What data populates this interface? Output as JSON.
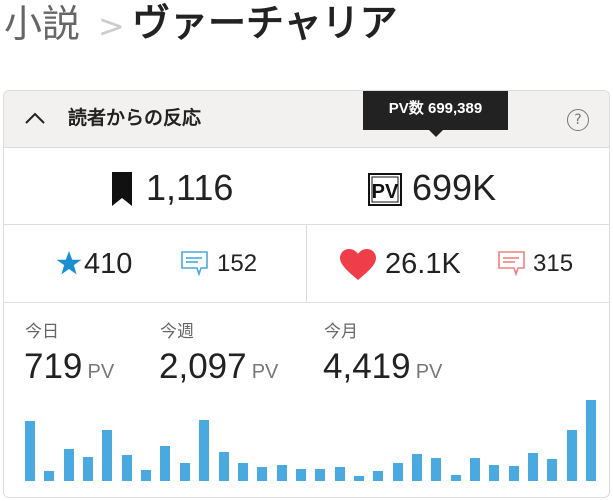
{
  "breadcrumb": {
    "category": "小説",
    "title": "ヴァーチャリア"
  },
  "panel": {
    "title": "読者からの反応",
    "tooltip": "PV数 699,389",
    "bookmarks": "1,116",
    "pv_total": "699K",
    "stars": "410",
    "reviews_blue": "152",
    "likes": "26.1K",
    "comments_red": "315",
    "stats": [
      {
        "label": "今日",
        "value": "719",
        "unit": "PV"
      },
      {
        "label": "今週",
        "value": "2,097",
        "unit": "PV"
      },
      {
        "label": "今月",
        "value": "4,419",
        "unit": "PV"
      }
    ]
  },
  "colors": {
    "bar": "#4aa9df",
    "star": "#1b8fd0",
    "heart": "#ef3e4a",
    "comment_blue": "#4aa9df",
    "comment_red": "#f08080"
  },
  "chart_data": {
    "type": "bar",
    "values": [
      529,
      87,
      286,
      214,
      457,
      232,
      96,
      313,
      159,
      538,
      259,
      159,
      123,
      141,
      105,
      105,
      123,
      42,
      87,
      159,
      241,
      205,
      51,
      205,
      141,
      132,
      250,
      196,
      457,
      719
    ]
  }
}
